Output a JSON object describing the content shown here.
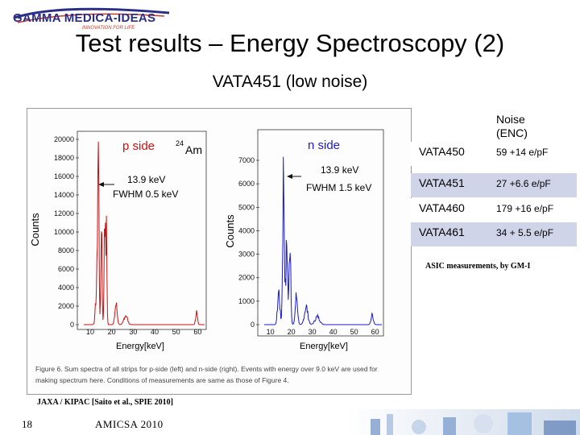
{
  "logo": {
    "name": "GAMMA MEDICA-IDEAS",
    "tagline": "INNOVATION FOR LIFE"
  },
  "title": "Test results – Energy Spectroscopy (2)",
  "subtitle": "VATA451 (low noise)",
  "figure": {
    "left_plot": {
      "label": "p side",
      "isotope_sup": "24",
      "isotope": "Am",
      "peak": "13.9 keV",
      "fwhm": "FWHM  0.5 keV",
      "ylabel": "Counts",
      "xlabel": "Energy[keV]",
      "yticks": [
        "20000",
        "18000",
        "16000",
        "14000",
        "12000",
        "10000",
        "8000",
        "6000",
        "4000",
        "2000",
        "0"
      ],
      "xticks": [
        "10",
        "20",
        "30",
        "40",
        "50",
        "60"
      ]
    },
    "right_plot": {
      "label": "n side",
      "peak": "13.9 keV",
      "fwhm": "FWHM  1.5 keV",
      "ylabel": "Counts",
      "xlabel": "Energy[keV]",
      "yticks": [
        "7000",
        "6000",
        "5000",
        "4000",
        "3000",
        "2000",
        "1000",
        "0"
      ],
      "xticks": [
        "10",
        "20",
        "30",
        "40",
        "50",
        "60"
      ]
    },
    "caption_line1": "Figure 6. Sum spectra of all strips for p-side (left) and n-side (right). Events with energy over 9.0 keV are used for",
    "caption_line2": "making spectrum here. Conditions of measurements are same as those of Figure 4."
  },
  "noise_table": {
    "header_line1": "Noise",
    "header_line2": "(ENC)",
    "rows": [
      {
        "chip": "VATA450",
        "noise": "59 +14 e/pF"
      },
      {
        "chip": "VATA451",
        "noise": "27  +6.6 e/pF"
      },
      {
        "chip": "VATA460",
        "noise": "179 +16 e/pF"
      },
      {
        "chip": "VATA461",
        "noise": "34  + 5.5 e/pF"
      }
    ],
    "row_colors": [
      "#ffffff",
      "#cfd4e8"
    ]
  },
  "asic_note": "ASIC measurements, by GM-I",
  "credit": "JAXA / KIPAC [Saito et al.,  SPIE 2010]",
  "footer": {
    "page_number": "18",
    "event": "AMICSA 2010"
  },
  "colors": {
    "p_side": "#cc1111",
    "n_side": "#1a1ad0",
    "logo_blue": "#2a2e86"
  }
}
